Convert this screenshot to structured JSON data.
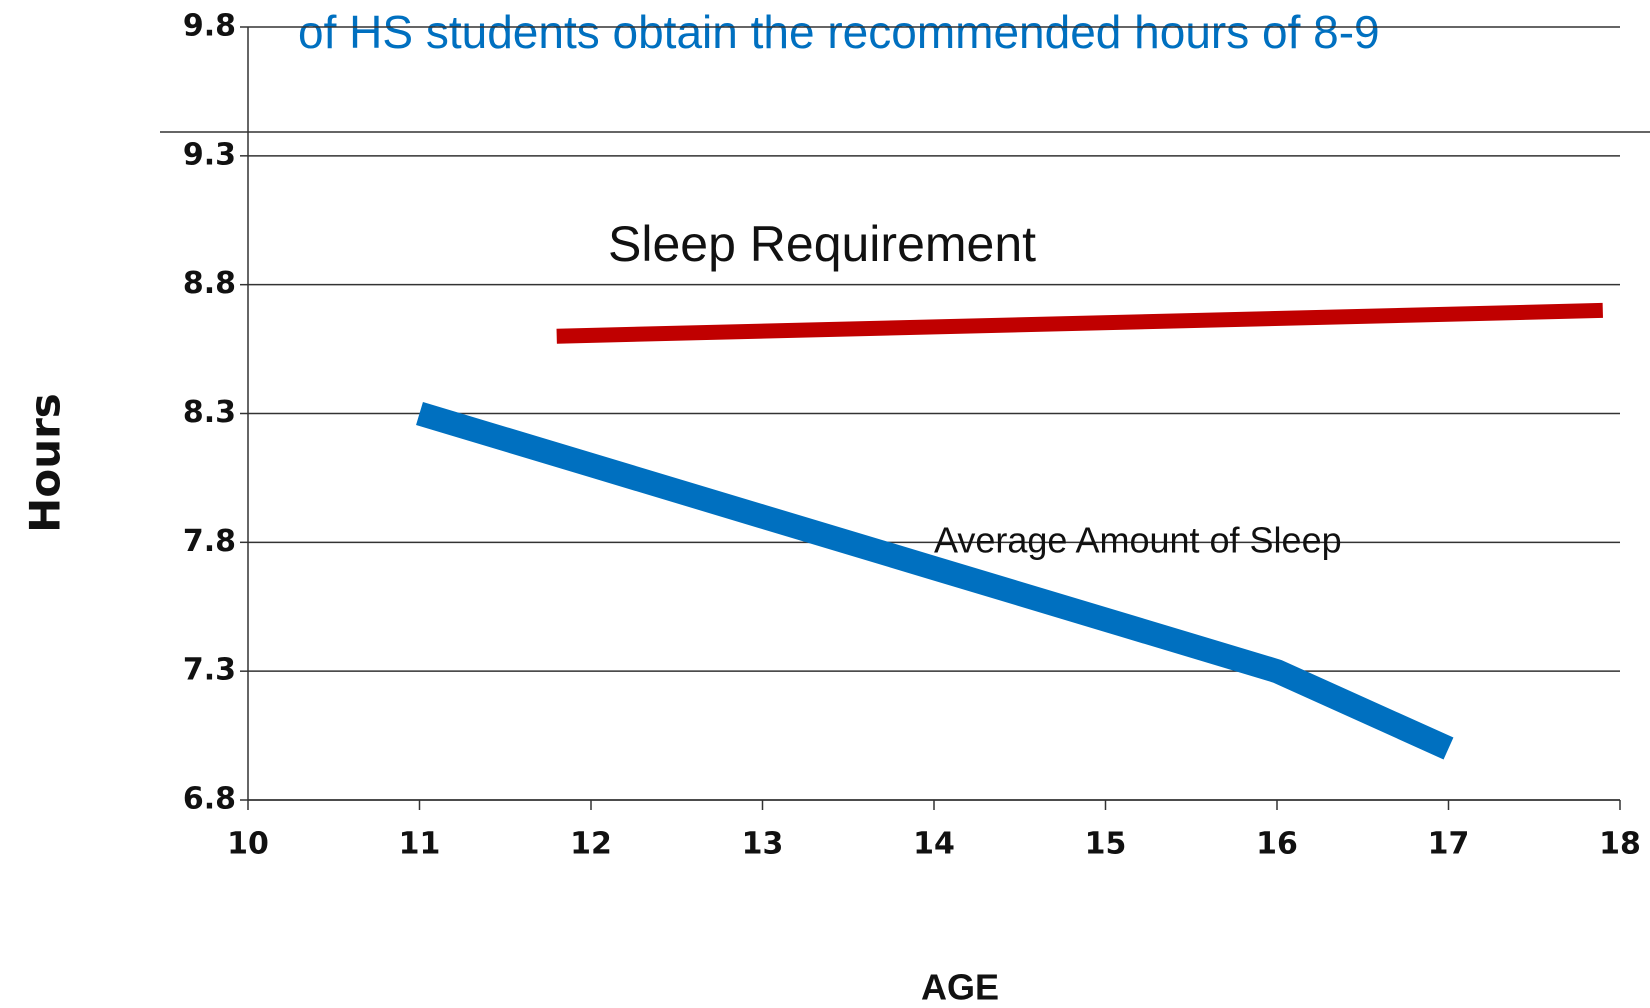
{
  "chart_data": {
    "type": "line",
    "title": "of HS students obtain the recommended hours of 8-9",
    "xlabel": "AGE",
    "ylabel": "Hours",
    "xlim": [
      10,
      18
    ],
    "xticks": [
      10,
      11,
      12,
      13,
      14,
      15,
      16,
      17,
      18
    ],
    "ylim": [
      6.8,
      9.8
    ],
    "yticks": [
      6.8,
      7.3,
      7.8,
      8.3,
      8.8,
      9.3,
      9.8
    ],
    "grid": true,
    "series": [
      {
        "name": "Sleep Requirement",
        "color": "#c00000",
        "x": [
          11.8,
          17.9
        ],
        "values": [
          8.6,
          8.7
        ]
      },
      {
        "name": "Average Amount of Sleep",
        "color": "#0070c0",
        "x": [
          11,
          12,
          13,
          14,
          15,
          16,
          17
        ],
        "values": [
          8.3,
          8.1,
          7.9,
          7.7,
          7.5,
          7.3,
          7.0
        ]
      }
    ]
  }
}
